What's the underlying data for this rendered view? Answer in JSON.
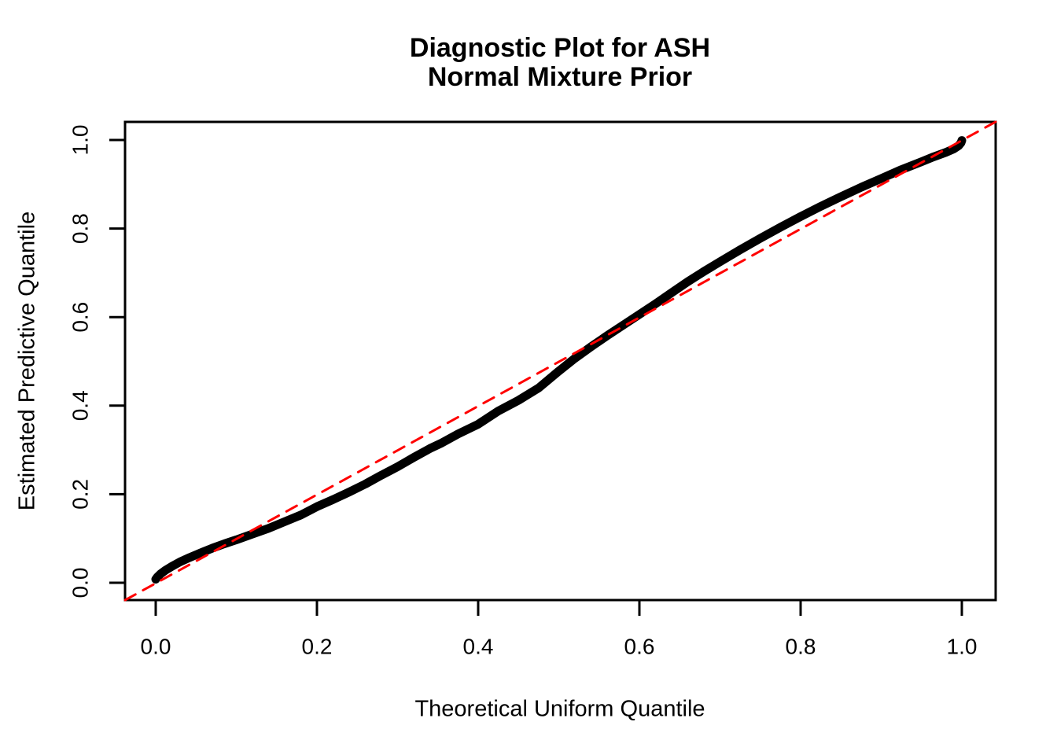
{
  "title": {
    "line1": "Diagnostic Plot for ASH",
    "line2": "Normal Mixture Prior"
  },
  "chart_data": {
    "type": "line",
    "title": "Diagnostic Plot for ASH  Normal Mixture Prior",
    "xlabel": "Theoretical Uniform Quantile",
    "ylabel": "Estimated Predictive Quantile",
    "xlim": [
      -0.04,
      1.04
    ],
    "ylim": [
      -0.04,
      1.04
    ],
    "grid": false,
    "legend": "none",
    "x_ticks": [
      0.0,
      0.2,
      0.4,
      0.6,
      0.8,
      1.0
    ],
    "x_tick_labels": [
      "0.0",
      "0.2",
      "0.4",
      "0.6",
      "0.8",
      "1.0"
    ],
    "y_ticks": [
      0.0,
      0.2,
      0.4,
      0.6,
      0.8,
      1.0
    ],
    "y_tick_labels": [
      "0.0",
      "0.2",
      "0.4",
      "0.6",
      "0.8",
      "1.0"
    ],
    "series": [
      {
        "name": "estimated_predictive_quantile_curve",
        "type": "line",
        "color": "#000000",
        "line_width": 11,
        "style": "solid",
        "x": [
          0.0,
          0.002,
          0.006,
          0.012,
          0.02,
          0.03,
          0.042,
          0.055,
          0.07,
          0.085,
          0.1,
          0.12,
          0.14,
          0.16,
          0.18,
          0.2,
          0.22,
          0.24,
          0.26,
          0.28,
          0.3,
          0.32,
          0.34,
          0.355,
          0.375,
          0.4,
          0.425,
          0.45,
          0.475,
          0.5,
          0.52,
          0.54,
          0.56,
          0.58,
          0.6,
          0.62,
          0.64,
          0.66,
          0.68,
          0.7,
          0.725,
          0.75,
          0.775,
          0.8,
          0.825,
          0.85,
          0.875,
          0.9,
          0.925,
          0.95,
          0.965,
          0.98,
          0.99,
          0.996,
          0.999,
          1.0
        ],
        "y": [
          0.008,
          0.013,
          0.02,
          0.028,
          0.037,
          0.047,
          0.057,
          0.067,
          0.078,
          0.088,
          0.097,
          0.11,
          0.123,
          0.138,
          0.153,
          0.172,
          0.188,
          0.205,
          0.223,
          0.243,
          0.262,
          0.283,
          0.303,
          0.316,
          0.336,
          0.358,
          0.388,
          0.412,
          0.44,
          0.478,
          0.507,
          0.533,
          0.558,
          0.582,
          0.606,
          0.63,
          0.655,
          0.68,
          0.703,
          0.725,
          0.752,
          0.778,
          0.803,
          0.827,
          0.85,
          0.872,
          0.893,
          0.913,
          0.933,
          0.951,
          0.962,
          0.972,
          0.98,
          0.987,
          0.994,
          0.999
        ]
      },
      {
        "name": "identity_reference_line",
        "type": "line",
        "color": "#FF0000",
        "line_width": 3,
        "style": "dashed",
        "x": [
          -0.038,
          1.042
        ],
        "y": [
          -0.039,
          1.041
        ]
      }
    ]
  },
  "colors": {
    "background": "#FFFFFF",
    "curve": "#000000",
    "reference_line": "#FF0000",
    "axis": "#000000"
  }
}
